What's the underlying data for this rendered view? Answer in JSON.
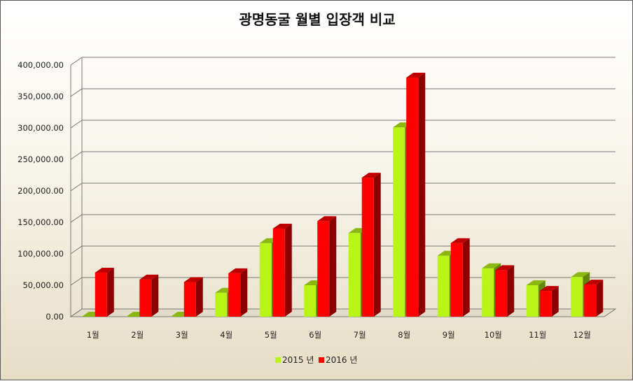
{
  "chart_data": {
    "type": "bar",
    "title": "광명동굴 월별 입장객 비교",
    "categories": [
      "1월",
      "2월",
      "3월",
      "4월",
      "5월",
      "6월",
      "7월",
      "8월",
      "9월",
      "10월",
      "11월",
      "12월"
    ],
    "series": [
      {
        "name": "2015 년",
        "color": "#b8f416",
        "values": [
          0,
          0,
          0,
          38000,
          117000,
          50000,
          133000,
          301000,
          97000,
          77000,
          50000,
          63000
        ]
      },
      {
        "name": "2016 년",
        "color": "#ff0000",
        "values": [
          70000,
          59000,
          55000,
          69000,
          140000,
          152000,
          221000,
          380000,
          117000,
          74000,
          41000,
          51000
        ]
      }
    ],
    "ylim": [
      0,
      400000
    ],
    "yticks": [
      "0.00",
      "50,000.00",
      "100,000.00",
      "150,000.00",
      "200,000.00",
      "250,000.00",
      "300,000.00",
      "350,000.00",
      "400,000.00"
    ],
    "grid": true,
    "legend_position": "bottom"
  }
}
